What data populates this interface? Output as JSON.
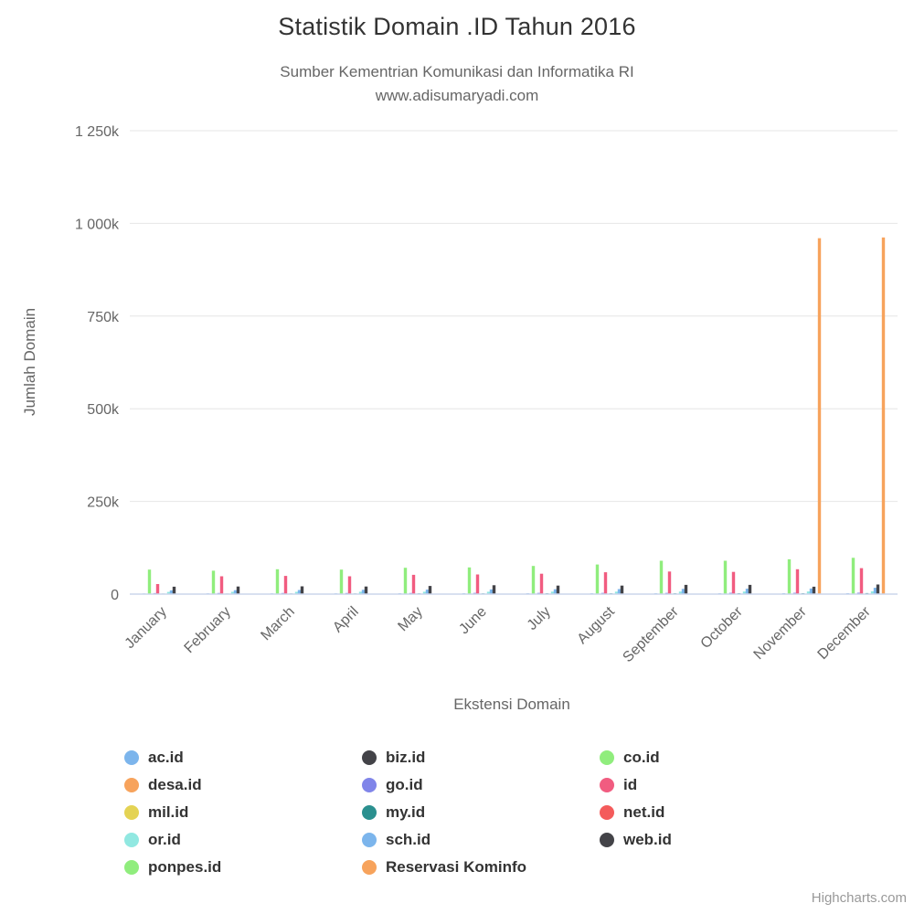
{
  "header": {
    "title": "Statistik Domain .ID Tahun 2016",
    "subtitle_line1": "Sumber Kementrian Komunikasi dan Informatika RI",
    "subtitle_line2": "www.adisumaryadi.com"
  },
  "credits": {
    "label": "Highcharts.com"
  },
  "colors": {
    "grid": "#e6e6e6",
    "axis_line": "#ccd6eb",
    "axis_text": "#666666",
    "title_text": "#333333",
    "credits_text": "#999999"
  },
  "chart_data": {
    "type": "bar",
    "title": "Statistik Domain .ID Tahun 2016",
    "subtitle": "Sumber Kementrian Komunikasi dan Informatika RI www.adisumaryadi.com",
    "xlabel": "Ekstensi Domain",
    "ylabel": "Jumlah Domain",
    "ylim": [
      0,
      1250000
    ],
    "grid": true,
    "legend_position": "bottom",
    "y_tick_values": [
      0,
      250000,
      500000,
      750000,
      1000000,
      1250000
    ],
    "y_tick_labels": [
      "0",
      "250k",
      "500k",
      "750k",
      "1 000k",
      "1 250k"
    ],
    "categories": [
      "January",
      "February",
      "March",
      "April",
      "May",
      "June",
      "July",
      "August",
      "September",
      "October",
      "November",
      "December"
    ],
    "series": [
      {
        "name": "ac.id",
        "color": "#7cb5ec",
        "values": [
          1800,
          1900,
          2000,
          2000,
          2100,
          2100,
          2200,
          2200,
          2300,
          2300,
          2400,
          2500
        ]
      },
      {
        "name": "biz.id",
        "color": "#434348",
        "values": [
          500,
          500,
          500,
          500,
          550,
          550,
          550,
          600,
          600,
          600,
          650,
          650
        ]
      },
      {
        "name": "co.id",
        "color": "#90ed7d",
        "values": [
          66000,
          63000,
          67000,
          66000,
          71000,
          72000,
          76000,
          80000,
          90000,
          90000,
          94000,
          98000
        ]
      },
      {
        "name": "desa.id",
        "color": "#f7a35c",
        "values": [
          0,
          0,
          0,
          0,
          0,
          0,
          0,
          0,
          0,
          0,
          100,
          200
        ]
      },
      {
        "name": "go.id",
        "color": "#8085e9",
        "values": [
          2800,
          2850,
          2900,
          2950,
          3000,
          3100,
          3150,
          3200,
          3300,
          3400,
          3500,
          3600
        ]
      },
      {
        "name": "id",
        "color": "#f15c80",
        "values": [
          27000,
          48000,
          49000,
          48000,
          52000,
          53000,
          55000,
          59000,
          61000,
          60000,
          67000,
          70000
        ]
      },
      {
        "name": "mil.id",
        "color": "#e4d354",
        "values": [
          100,
          100,
          100,
          100,
          100,
          100,
          100,
          100,
          100,
          100,
          100,
          100
        ]
      },
      {
        "name": "my.id",
        "color": "#2b908f",
        "values": [
          1500,
          1600,
          1700,
          1800,
          1900,
          2000,
          2100,
          2200,
          2300,
          2400,
          2500,
          2600
        ]
      },
      {
        "name": "net.id",
        "color": "#f45b5b",
        "values": [
          600,
          600,
          600,
          600,
          650,
          650,
          650,
          700,
          700,
          700,
          750,
          750
        ]
      },
      {
        "name": "or.id",
        "color": "#91e8e1",
        "values": [
          6000,
          6100,
          6200,
          6300,
          6400,
          6500,
          6600,
          6700,
          6900,
          7000,
          7200,
          7500
        ]
      },
      {
        "name": "sch.id",
        "color": "#7cb5ec",
        "values": [
          10000,
          10500,
          11000,
          11500,
          12000,
          12500,
          13000,
          13500,
          14000,
          14500,
          15000,
          17000
        ]
      },
      {
        "name": "web.id",
        "color": "#434348",
        "values": [
          20000,
          20500,
          21000,
          20500,
          22000,
          24000,
          23000,
          23000,
          25000,
          25000,
          20000,
          26000
        ]
      },
      {
        "name": "ponpes.id",
        "color": "#90ed7d",
        "values": [
          0,
          0,
          0,
          0,
          0,
          0,
          100,
          100,
          150,
          150,
          200,
          200
        ]
      },
      {
        "name": "Reservasi Kominfo",
        "color": "#f7a35c",
        "values": [
          0,
          0,
          0,
          0,
          0,
          0,
          0,
          0,
          0,
          0,
          960000,
          962000
        ]
      }
    ]
  }
}
